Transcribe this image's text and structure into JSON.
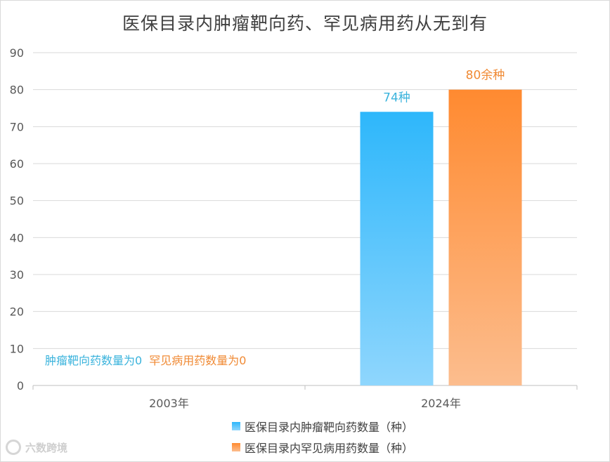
{
  "chart_data": {
    "type": "bar",
    "title": "医保目录内肿瘤靶向药、罕见病用药从无到有",
    "categories": [
      "2003年",
      "2024年"
    ],
    "ylim": [
      0,
      90
    ],
    "yticks": [
      0,
      10,
      20,
      30,
      40,
      50,
      60,
      70,
      80,
      90
    ],
    "grid": true,
    "legend_position": "bottom",
    "series": [
      {
        "name": "医保目录内肿瘤靶向药数量（种）",
        "values": [
          0,
          74
        ],
        "data_labels": [
          "肿瘤靶向药数量为0",
          "74种"
        ],
        "color_top": "#2eb7fb",
        "color_bottom": "#8fd6fd",
        "label_color": "#3ab3dc"
      },
      {
        "name": "医保目录内罕见病用药数量（种）",
        "values": [
          0,
          80
        ],
        "data_labels": [
          "罕见病用药数量为0",
          "80余种"
        ],
        "color_top": "#ff8a30",
        "color_bottom": "#fcbd8e",
        "label_color": "#f08a34"
      }
    ]
  },
  "watermark": "六数跨境"
}
